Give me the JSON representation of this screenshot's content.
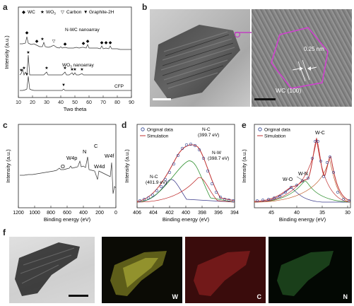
{
  "panels": {
    "a": {
      "label": "a",
      "legend": [
        "WC",
        "WO",
        "Carbon",
        "Graphite-2H"
      ],
      "legend_sub": "3",
      "traces": [
        "N-WC nanoarray",
        "WO",
        "CFP"
      ],
      "trace_wo_sub": "3",
      "trace_wo_suffix": " nanoarray",
      "ylabel": "Intensity (a.u.)",
      "xlabel": "Two theta",
      "xticks": [
        "10",
        "20",
        "30",
        "40",
        "50",
        "60",
        "70",
        "80",
        "90"
      ]
    },
    "b": {
      "label": "b",
      "lattice": "0.25 nm",
      "plane": "WC (100)"
    },
    "c": {
      "label": "c",
      "ylabel": "Intensity (a.u.)",
      "xlabel": "Binding energy (eV)",
      "xticks": [
        "1200",
        "1000",
        "800",
        "600",
        "400",
        "200",
        "0"
      ],
      "peaks": [
        "O",
        "W4p",
        "N",
        "C",
        "W4d",
        "W4f"
      ]
    },
    "d": {
      "label": "d",
      "legend": [
        "Original data",
        "Simulation"
      ],
      "ylabel": "Intensity (a.u.)",
      "xlabel": "Binding energy (eV)",
      "xticks": [
        "406",
        "404",
        "402",
        "400",
        "398",
        "396",
        "394"
      ],
      "ann_nc1": "N-C",
      "ann_nc1_ev": "(401.9 eV)",
      "ann_nc2": "N-C",
      "ann_nc2_ev": "(399.7 eV)",
      "ann_nw": "N-W",
      "ann_nw_ev": "(398.7 eV)"
    },
    "e": {
      "label": "e",
      "legend": [
        "Original data",
        "Simulation"
      ],
      "ylabel": "Intensity (a.u.)",
      "xlabel": "Binding energy (eV)",
      "xticks": [
        "45",
        "40",
        "35",
        "30"
      ],
      "ann_wo": "W-O",
      "ann_wn": "W-N",
      "ann_wc": "W-C"
    },
    "f": {
      "label": "f",
      "maps": [
        "W",
        "C",
        "N"
      ]
    }
  }
}
